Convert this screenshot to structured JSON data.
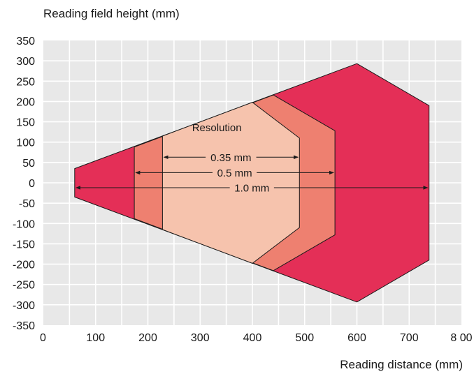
{
  "chart_data": {
    "type": "area",
    "title": "",
    "ylabel": "Reading field height (mm)",
    "xlabel": "Reading distance (mm)",
    "xlim": [
      0,
      800
    ],
    "ylim": [
      -350,
      350
    ],
    "x_ticks": [
      0,
      100,
      200,
      300,
      400,
      500,
      600,
      700,
      800
    ],
    "x_tick_labels": [
      "0",
      "100",
      "200",
      "300",
      "400",
      "500",
      "600",
      "700",
      "8 00"
    ],
    "y_ticks": [
      350,
      300,
      250,
      200,
      150,
      100,
      50,
      0,
      -50,
      -100,
      -150,
      -200,
      -250,
      -300,
      -350
    ],
    "y_tick_labels": [
      "350",
      "300",
      "250",
      "200",
      "150",
      "100",
      "50",
      "0",
      "-50",
      "-100",
      "-150",
      "-200",
      "-250",
      "-300",
      "-350"
    ],
    "grid": true,
    "annotation_title": "Resolution",
    "zones": [
      {
        "label": "1.0 mm",
        "color": "#e42f57",
        "polygon": [
          [
            60,
            35
          ],
          [
            600,
            293
          ],
          [
            738,
            190
          ],
          [
            738,
            -190
          ],
          [
            600,
            -293
          ],
          [
            60,
            -35
          ]
        ],
        "arrow": {
          "from": 60,
          "to": 738,
          "y": -12
        }
      },
      {
        "label": "0.5 mm",
        "color": "#ee8070",
        "polygon": [
          [
            174,
            88
          ],
          [
            440,
            216
          ],
          [
            558,
            128
          ],
          [
            558,
            -128
          ],
          [
            440,
            -216
          ],
          [
            174,
            -88
          ]
        ],
        "arrow": {
          "from": 174,
          "to": 558,
          "y": 25
        }
      },
      {
        "label": "0.35 mm",
        "color": "#f6c3ad",
        "polygon": [
          [
            228,
            115
          ],
          [
            400,
            198
          ],
          [
            490,
            110
          ],
          [
            490,
            -110
          ],
          [
            400,
            -198
          ],
          [
            228,
            -115
          ]
        ],
        "arrow": {
          "from": 228,
          "to": 490,
          "y": 63
        }
      }
    ]
  },
  "colors": {
    "plot_background": "#e8e8e8",
    "grid": "#ffffff",
    "outline": "#1a1a1a"
  }
}
